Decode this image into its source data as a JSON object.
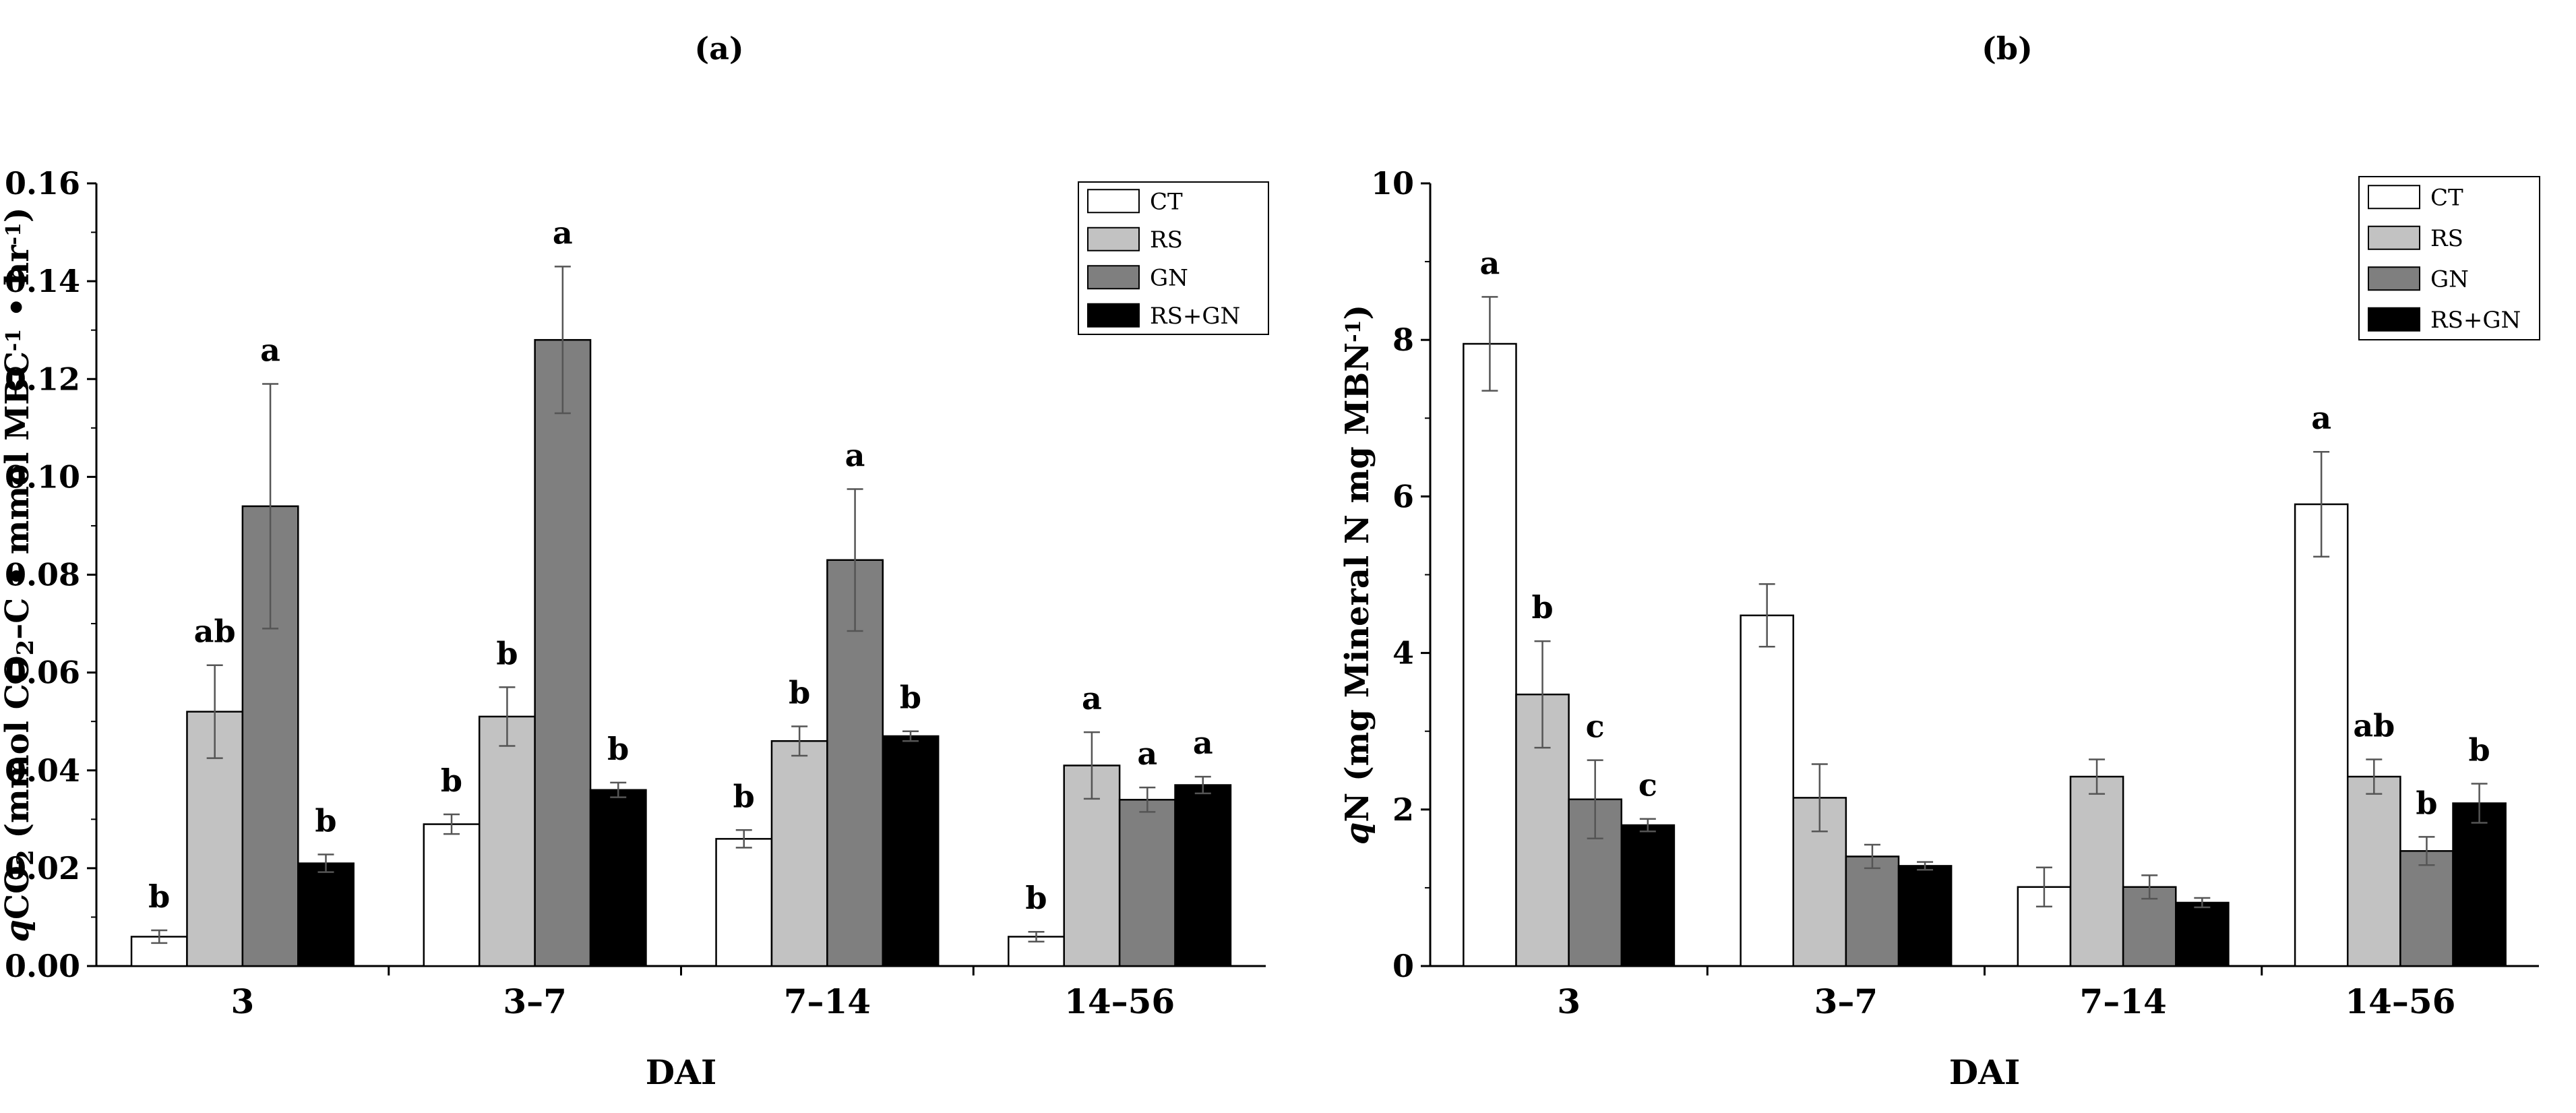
{
  "chart_data": [
    {
      "panel": "(a)",
      "type": "bar",
      "ylabel_parts": [
        "q",
        "CO",
        "2",
        " (mmol CO",
        "2",
        "–C • mmol MBC",
        "-1",
        " • hr",
        "-1",
        ")"
      ],
      "xlabel": "DAI",
      "ylim": [
        0,
        0.16
      ],
      "yticks": [
        "0.00",
        "0.02",
        "0.04",
        "0.06",
        "0.08",
        "0.10",
        "0.12",
        "0.14",
        "0.16"
      ],
      "categories": [
        "3",
        "3–7",
        "7–14",
        "14–56"
      ],
      "series": [
        {
          "name": "CT",
          "color": "#ffffff",
          "values": [
            0.006,
            0.029,
            0.026,
            0.006
          ],
          "errors": [
            0.0013,
            0.002,
            0.0018,
            0.001
          ],
          "letters": [
            "b",
            "b",
            "b",
            "b"
          ]
        },
        {
          "name": "RS",
          "color": "#c2c2c2",
          "values": [
            0.052,
            0.051,
            0.046,
            0.041
          ],
          "errors": [
            0.0095,
            0.006,
            0.003,
            0.0068
          ],
          "letters": [
            "ab",
            "b",
            "b",
            "a"
          ]
        },
        {
          "name": "GN",
          "color": "#7f7f7f",
          "values": [
            0.094,
            0.128,
            0.083,
            0.034
          ],
          "errors": [
            0.025,
            0.015,
            0.0145,
            0.0025
          ],
          "letters": [
            "a",
            "a",
            "a",
            "a"
          ]
        },
        {
          "name": "RS+GN",
          "color": "#000000",
          "values": [
            0.021,
            0.036,
            0.047,
            0.037
          ],
          "errors": [
            0.0018,
            0.0015,
            0.001,
            0.0017
          ],
          "letters": [
            "b",
            "b",
            "b",
            "a"
          ]
        }
      ],
      "legend": [
        "CT",
        "RS",
        "GN",
        "RS+GN"
      ]
    },
    {
      "panel": "(b)",
      "type": "bar",
      "ylabel_parts": [
        "q",
        "N (mg Mineral N mg MBN",
        "-1",
        ")"
      ],
      "xlabel": "DAI",
      "ylim": [
        0,
        10
      ],
      "yticks": [
        "0",
        "2",
        "4",
        "6",
        "8",
        "10"
      ],
      "categories": [
        "3",
        "3–7",
        "7–14",
        "14–56"
      ],
      "series": [
        {
          "name": "CT",
          "color": "#ffffff",
          "values": [
            7.95,
            4.48,
            1.01,
            5.9
          ],
          "errors": [
            0.6,
            0.4,
            0.25,
            0.67
          ],
          "letters": [
            "a",
            "",
            "",
            "a"
          ]
        },
        {
          "name": "RS",
          "color": "#c2c2c2",
          "values": [
            3.47,
            2.15,
            2.42,
            2.42
          ],
          "errors": [
            0.68,
            0.43,
            0.22,
            0.22
          ],
          "letters": [
            "b",
            "",
            "",
            "ab"
          ]
        },
        {
          "name": "GN",
          "color": "#7f7f7f",
          "values": [
            2.13,
            1.4,
            1.01,
            1.47
          ],
          "errors": [
            0.5,
            0.15,
            0.15,
            0.18
          ],
          "letters": [
            "c",
            "",
            "",
            "b"
          ]
        },
        {
          "name": "RS+GN",
          "color": "#000000",
          "values": [
            1.8,
            1.28,
            0.81,
            2.08
          ],
          "errors": [
            0.08,
            0.05,
            0.06,
            0.25
          ],
          "letters": [
            "c",
            "",
            "",
            "b"
          ]
        }
      ],
      "legend": [
        "CT",
        "RS",
        "GN",
        "RS+GN"
      ]
    }
  ]
}
